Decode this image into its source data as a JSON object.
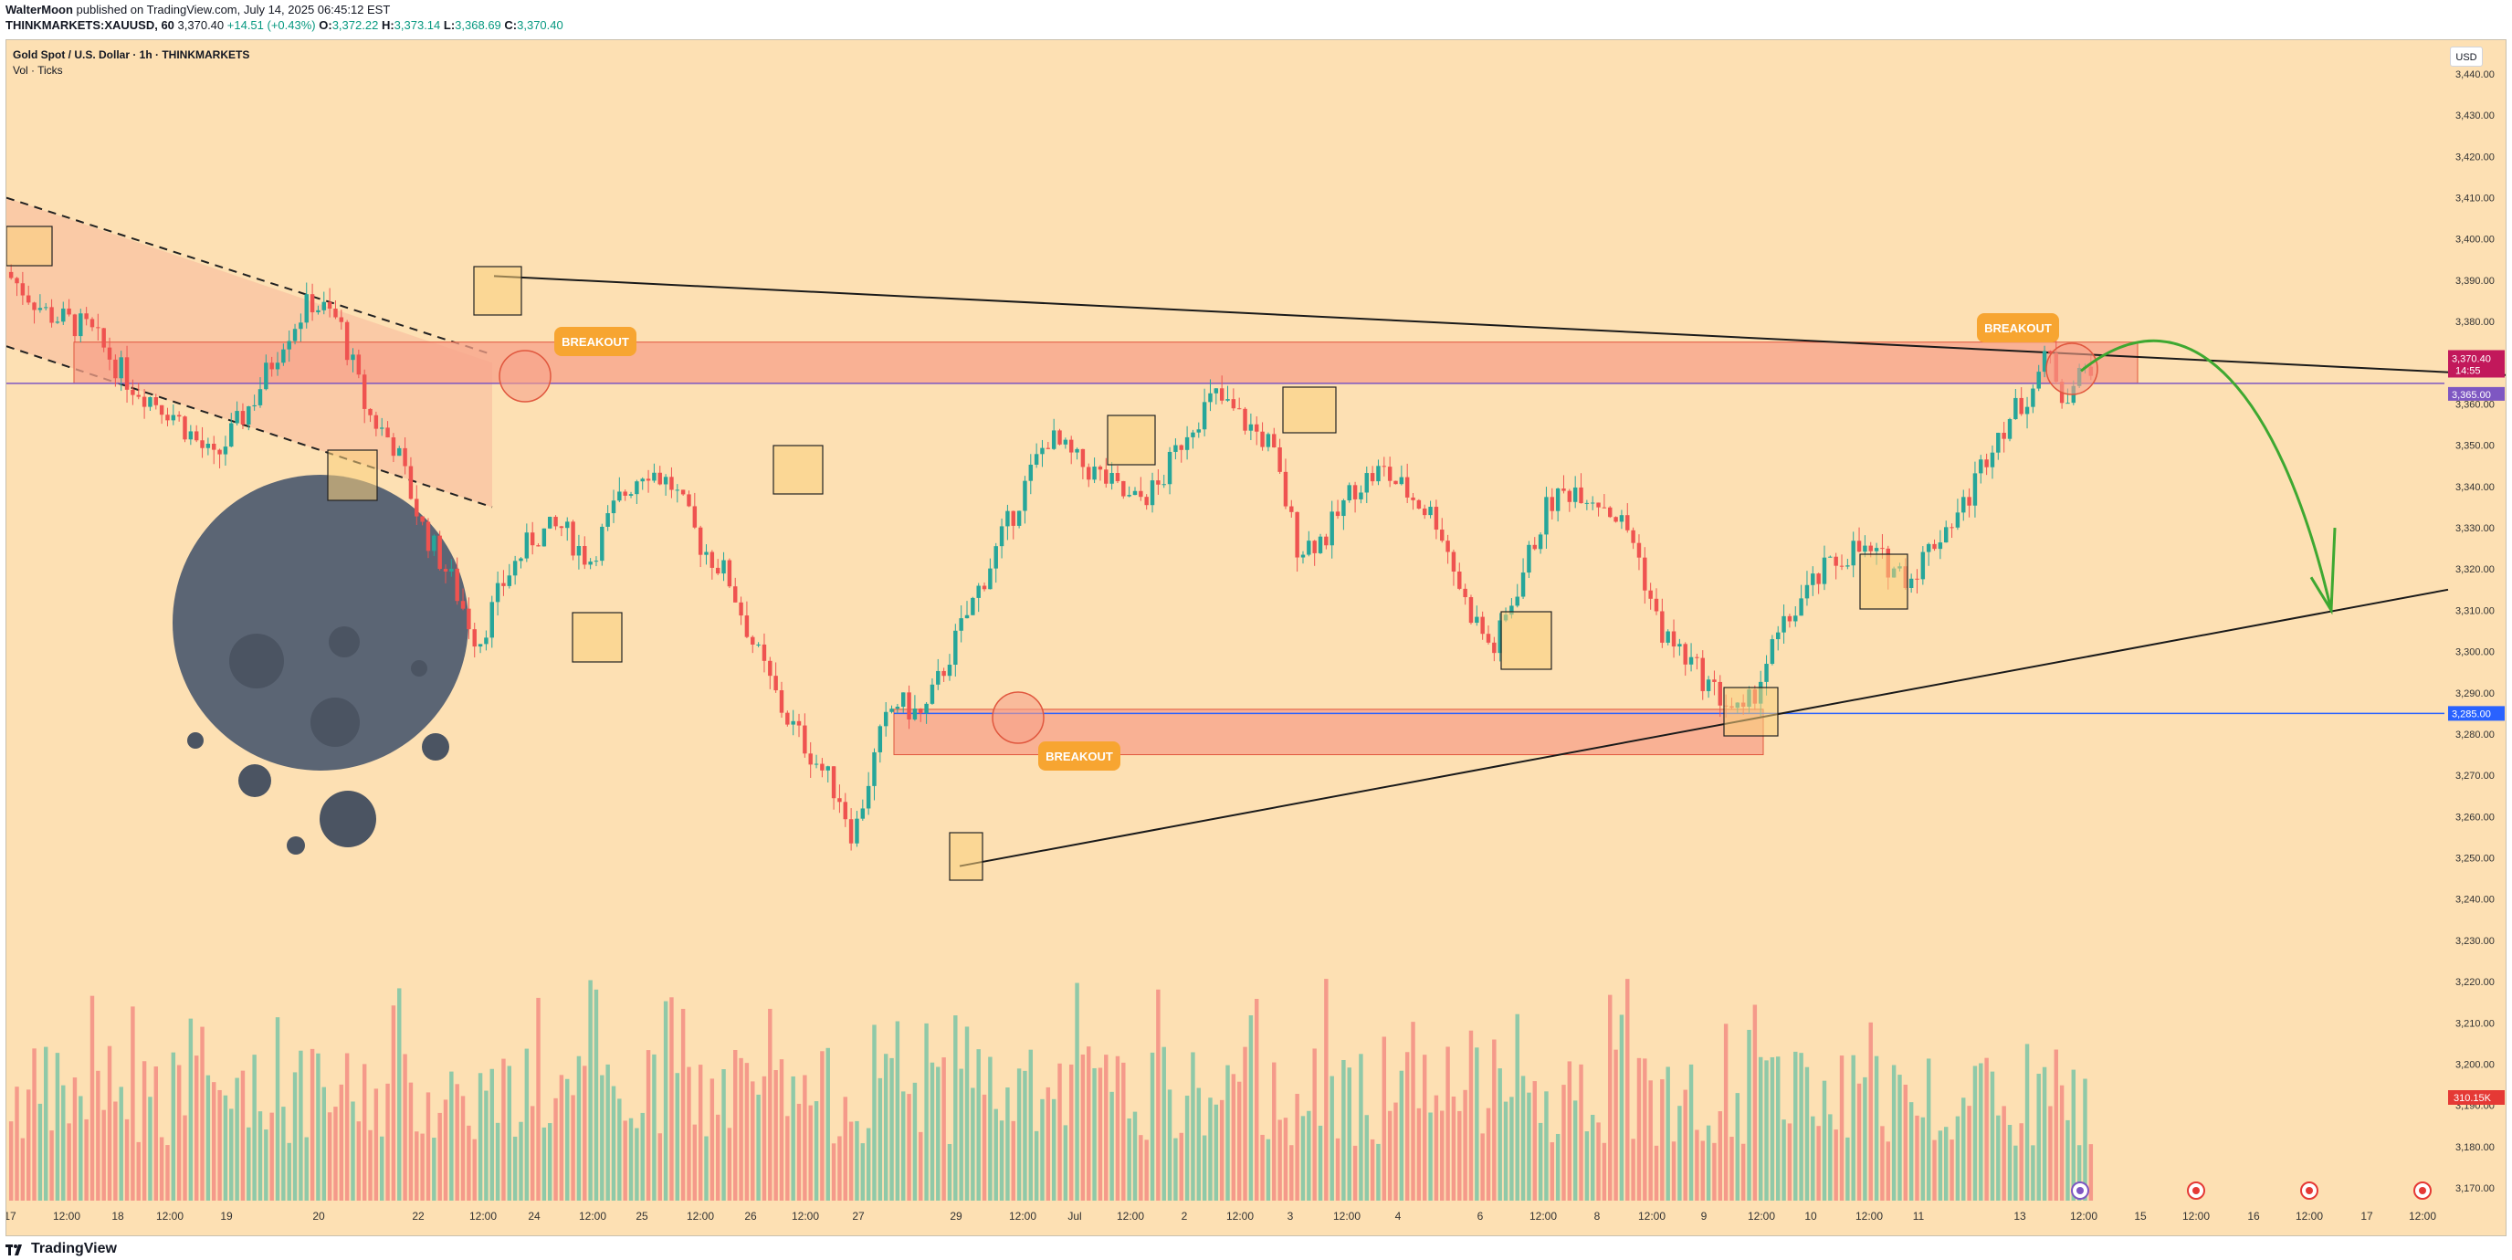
{
  "header": {
    "author": "WalterMoon",
    "published": "published on TradingView.com, July 14, 2025 06:45:12 EST",
    "symbol": "THINKMARKETS:XAUUSD, 60",
    "last": "3,370.40",
    "change": "+14.51 (+0.43%)",
    "o_label": "O:",
    "o_value": "3,372.22",
    "h_label": "H:",
    "h_value": "3,373.14",
    "l_label": "L:",
    "l_value": "3,368.69",
    "c_label": "C:",
    "c_value": "3,370.40"
  },
  "legend": {
    "title": "Gold Spot / U.S. Dollar · 1h · THINKMARKETS",
    "volume": "Vol · Ticks"
  },
  "currency_button": "USD",
  "footer": {
    "brand": "TradingView"
  },
  "colors": {
    "background": "#fde0b3",
    "up": "#26a69a",
    "down": "#ef5350",
    "zone": "#f7a18a",
    "breakout": "#f7a531",
    "arrow": "#3ea831",
    "last_price": "#c2185b",
    "support_line": "#2962ff"
  },
  "chart_data": {
    "type": "candlestick",
    "title": "Gold Spot / U.S. Dollar · 1h · THINKMARKETS",
    "y_axis": {
      "min": 3165,
      "max": 3443,
      "ticks": [
        "3,440.00",
        "3,430.00",
        "3,420.00",
        "3,410.00",
        "3,400.00",
        "3,390.00",
        "3,380.00",
        "3,370.00",
        "3,360.00",
        "3,350.00",
        "3,340.00",
        "3,330.00",
        "3,320.00",
        "3,310.00",
        "3,300.00",
        "3,290.00",
        "3,280.00",
        "3,270.00",
        "3,260.00",
        "3,250.00",
        "3,240.00",
        "3,230.00",
        "3,220.00",
        "3,210.00",
        "3,200.00",
        "3,190.00",
        "3,180.00",
        "3,170.00"
      ]
    },
    "x_axis": {
      "ticks": [
        "17",
        "12:00",
        "18",
        "12:00",
        "19",
        "20",
        "22",
        "12:00",
        "24",
        "12:00",
        "25",
        "12:00",
        "26",
        "12:00",
        "27",
        "29",
        "12:00",
        "Jul",
        "12:00",
        "2",
        "12:00",
        "3",
        "12:00",
        "4",
        "6",
        "12:00",
        "8",
        "12:00",
        "9",
        "12:00",
        "10",
        "12:00",
        "11",
        "13",
        "12:00",
        "15",
        "12:00",
        "16",
        "12:00",
        "17",
        "12:00"
      ]
    },
    "price_labels": [
      {
        "value": "3,370.40",
        "sub": "14:55",
        "kind": "last"
      },
      {
        "value": "3,365.00",
        "kind": "line"
      },
      {
        "value": "3,285.00",
        "kind": "support"
      },
      {
        "value": "310.15K",
        "kind": "volume"
      }
    ],
    "horizontal_lines": [
      3365,
      3285
    ],
    "zones": [
      {
        "from_price": 3375,
        "to_price": 3365
      },
      {
        "from_price": 3286,
        "to_price": 3275
      }
    ],
    "annotations": [
      "BREAKOUT",
      "BREAKOUT",
      "BREAKOUT"
    ],
    "price_path": [
      {
        "t": 0,
        "p": 3392
      },
      {
        "t": 3,
        "p": 3382
      },
      {
        "t": 6,
        "p": 3378
      },
      {
        "t": 9,
        "p": 3365
      },
      {
        "t": 12,
        "p": 3358
      },
      {
        "t": 15,
        "p": 3346
      },
      {
        "t": 18,
        "p": 3362
      },
      {
        "t": 20,
        "p": 3376
      },
      {
        "t": 22,
        "p": 3385
      },
      {
        "t": 24,
        "p": 3380
      },
      {
        "t": 26,
        "p": 3358
      },
      {
        "t": 28,
        "p": 3350
      },
      {
        "t": 30,
        "p": 3330
      },
      {
        "t": 32,
        "p": 3318
      },
      {
        "t": 34,
        "p": 3302
      },
      {
        "t": 36,
        "p": 3318
      },
      {
        "t": 38,
        "p": 3328
      },
      {
        "t": 40,
        "p": 3330
      },
      {
        "t": 42,
        "p": 3322
      },
      {
        "t": 44,
        "p": 3336
      },
      {
        "t": 46,
        "p": 3345
      },
      {
        "t": 48,
        "p": 3340
      },
      {
        "t": 50,
        "p": 3326
      },
      {
        "t": 52,
        "p": 3318
      },
      {
        "t": 54,
        "p": 3300
      },
      {
        "t": 56,
        "p": 3285
      },
      {
        "t": 58,
        "p": 3275
      },
      {
        "t": 60,
        "p": 3265
      },
      {
        "t": 61,
        "p": 3255
      },
      {
        "t": 62,
        "p": 3268
      },
      {
        "t": 63,
        "p": 3280
      },
      {
        "t": 64,
        "p": 3288
      },
      {
        "t": 66,
        "p": 3284
      },
      {
        "t": 68,
        "p": 3300
      },
      {
        "t": 70,
        "p": 3315
      },
      {
        "t": 72,
        "p": 3330
      },
      {
        "t": 74,
        "p": 3345
      },
      {
        "t": 75,
        "p": 3352
      },
      {
        "t": 77,
        "p": 3346
      },
      {
        "t": 79,
        "p": 3342
      },
      {
        "t": 81,
        "p": 3336
      },
      {
        "t": 83,
        "p": 3340
      },
      {
        "t": 85,
        "p": 3354
      },
      {
        "t": 87,
        "p": 3362
      },
      {
        "t": 89,
        "p": 3356
      },
      {
        "t": 91,
        "p": 3350
      },
      {
        "t": 93,
        "p": 3325
      },
      {
        "t": 95,
        "p": 3328
      },
      {
        "t": 97,
        "p": 3340
      },
      {
        "t": 99,
        "p": 3344
      },
      {
        "t": 101,
        "p": 3338
      },
      {
        "t": 103,
        "p": 3332
      },
      {
        "t": 105,
        "p": 3312
      },
      {
        "t": 107,
        "p": 3300
      },
      {
        "t": 109,
        "p": 3318
      },
      {
        "t": 111,
        "p": 3336
      },
      {
        "t": 113,
        "p": 3340
      },
      {
        "t": 115,
        "p": 3336
      },
      {
        "t": 117,
        "p": 3328
      },
      {
        "t": 119,
        "p": 3305
      },
      {
        "t": 121,
        "p": 3298
      },
      {
        "t": 123,
        "p": 3290
      },
      {
        "t": 125,
        "p": 3284
      },
      {
        "t": 127,
        "p": 3300
      },
      {
        "t": 129,
        "p": 3312
      },
      {
        "t": 131,
        "p": 3320
      },
      {
        "t": 133,
        "p": 3325
      },
      {
        "t": 135,
        "p": 3322
      },
      {
        "t": 137,
        "p": 3318
      },
      {
        "t": 139,
        "p": 3328
      },
      {
        "t": 141,
        "p": 3336
      },
      {
        "t": 143,
        "p": 3352
      },
      {
        "t": 145,
        "p": 3360
      },
      {
        "t": 147,
        "p": 3372
      },
      {
        "t": 148,
        "p": 3362
      },
      {
        "t": 149,
        "p": 3366
      },
      {
        "t": 150,
        "p": 3370
      }
    ],
    "volume": {
      "last": "310.15K"
    }
  }
}
